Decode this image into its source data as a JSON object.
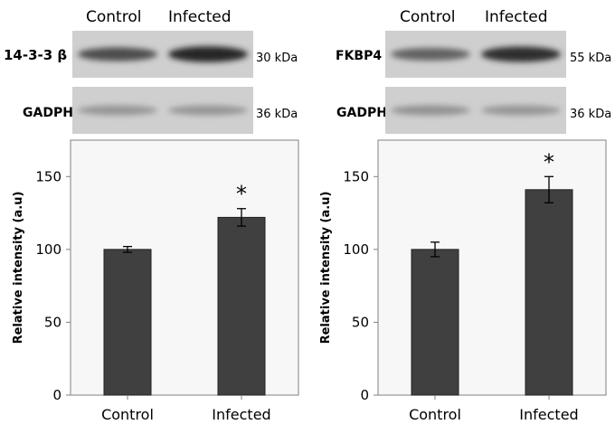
{
  "panels": [
    {
      "lanes": [
        "Control",
        "Infected"
      ],
      "blots": [
        {
          "protein": "14-3-3 β",
          "kda": "30 kDa",
          "bands": [
            0.72,
            0.95
          ]
        },
        {
          "protein": "GADPH",
          "kda": "36 kDa",
          "bands": [
            0.3,
            0.3
          ]
        }
      ]
    },
    {
      "lanes": [
        "Control",
        "Infected"
      ],
      "blots": [
        {
          "protein": "FKBP4",
          "kda": "55 kDa",
          "bands": [
            0.6,
            0.9
          ]
        },
        {
          "protein": "GADPH",
          "kda": "36 kDa",
          "bands": [
            0.32,
            0.3
          ]
        }
      ]
    }
  ],
  "chart_data": [
    {
      "type": "bar",
      "categories": [
        "Control",
        "Infected"
      ],
      "values": [
        100,
        122
      ],
      "errors": [
        2,
        6
      ],
      "annotations": [
        "",
        "*"
      ],
      "title": "",
      "xlabel": "",
      "ylabel": "Relative intensity (a.u)",
      "ylim": [
        0,
        175
      ],
      "yticks": [
        0,
        50,
        100,
        150
      ],
      "grid": false,
      "colors": {
        "bar": "#404040",
        "plot_bg": "#f7f7f7",
        "axis": "#808080"
      }
    },
    {
      "type": "bar",
      "categories": [
        "Control",
        "Infected"
      ],
      "values": [
        100,
        141
      ],
      "errors": [
        5,
        9
      ],
      "annotations": [
        "",
        "*"
      ],
      "title": "",
      "xlabel": "",
      "ylabel": "Relative intensity (a.u)",
      "ylim": [
        0,
        175
      ],
      "yticks": [
        0,
        50,
        100,
        150
      ],
      "grid": false,
      "colors": {
        "bar": "#404040",
        "plot_bg": "#f7f7f7",
        "axis": "#808080"
      }
    }
  ]
}
